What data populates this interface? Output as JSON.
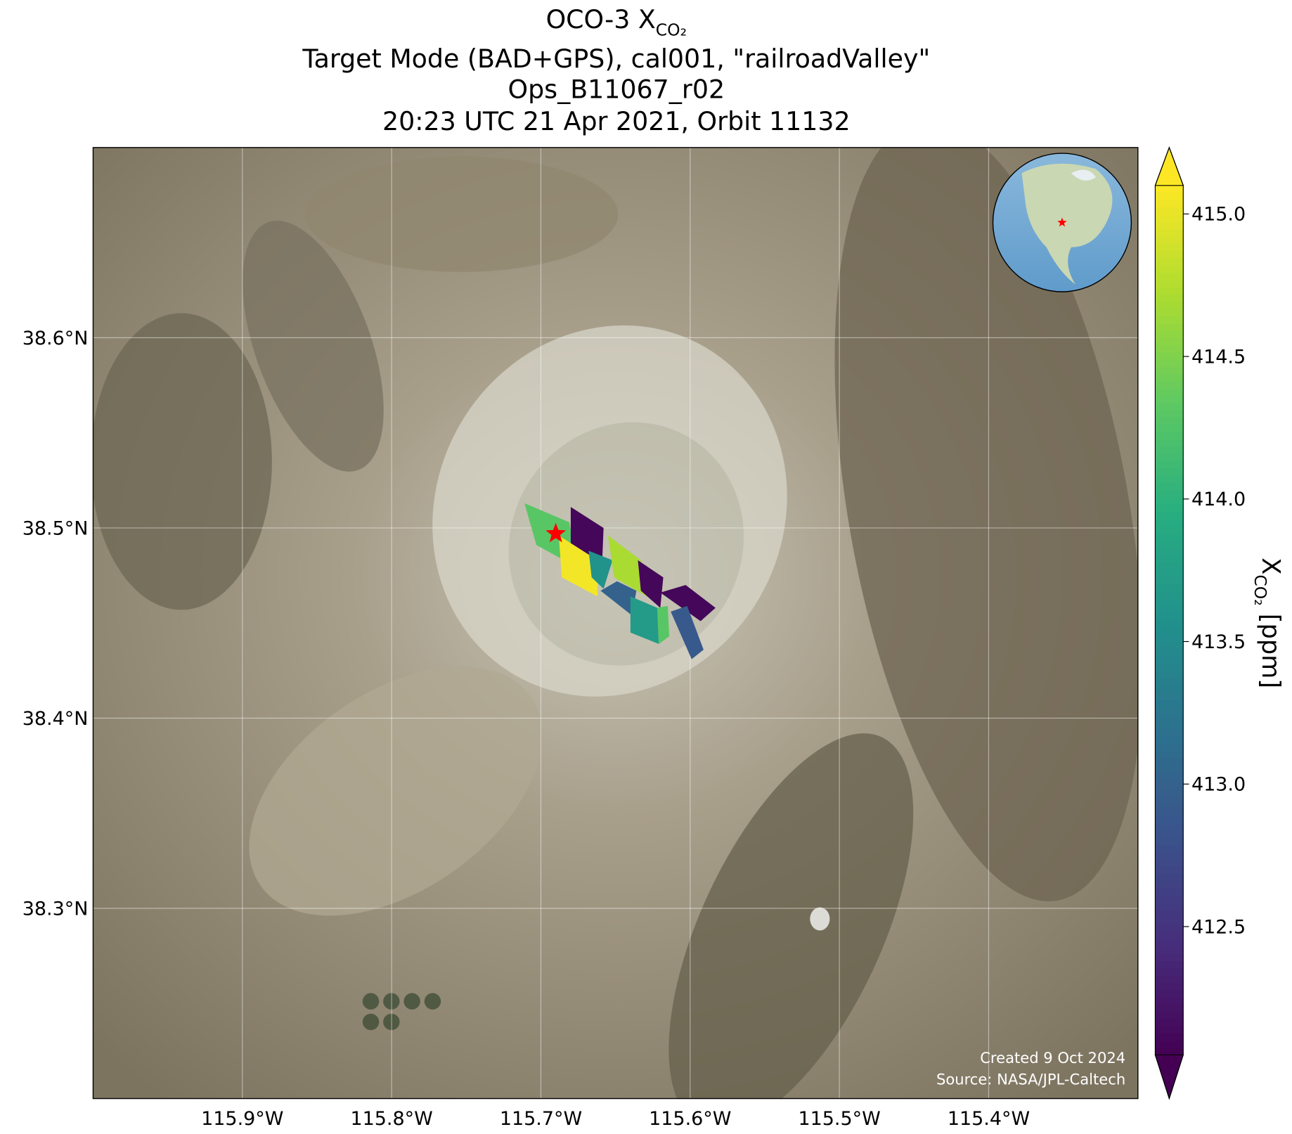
{
  "chart_data": {
    "type": "map",
    "title_lines": [
      {
        "text": "OCO-3 X",
        "subscript": "CO₂"
      },
      "Target Mode (BAD+GPS), cal001, \"railroadValley\"",
      "Ops_B11067_r02",
      "20:23 UTC 21 Apr 2021, Orbit 11132"
    ],
    "xlim": [
      -116.0,
      -115.3
    ],
    "ylim": [
      38.2,
      38.7
    ],
    "xticks": [
      {
        "value": -115.9,
        "label": "115.9°W"
      },
      {
        "value": -115.8,
        "label": "115.8°W"
      },
      {
        "value": -115.7,
        "label": "115.7°W"
      },
      {
        "value": -115.6,
        "label": "115.6°W"
      },
      {
        "value": -115.5,
        "label": "115.5°W"
      },
      {
        "value": -115.4,
        "label": "115.4°W"
      }
    ],
    "yticks": [
      {
        "value": 38.3,
        "label": "38.3°N"
      },
      {
        "value": 38.4,
        "label": "38.4°N"
      },
      {
        "value": 38.5,
        "label": "38.5°N"
      },
      {
        "value": 38.6,
        "label": "38.6°N"
      }
    ],
    "grid": true,
    "colormap": "viridis",
    "clim": [
      412.05,
      415.1
    ],
    "colorbar_ticks": [
      412.5,
      {
        "value": 413.0,
        "label": "413.0"
      },
      413.5,
      {
        "value": 414.0,
        "label": "414.0"
      },
      414.5,
      {
        "value": 415.0,
        "label": "415.0"
      }
    ],
    "colorbar_label": {
      "text": "X",
      "subscript": "CO₂",
      "unit": " [ppm]"
    },
    "target": {
      "lon": -115.69,
      "lat": 38.497,
      "color": "#ff0000"
    },
    "footprints": [
      {
        "lon": [
          -115.711,
          -115.681,
          -115.675,
          -115.703
        ],
        "lat": [
          38.513,
          38.503,
          38.479,
          38.491
        ],
        "value": 414.3
      },
      {
        "lon": [
          -115.68,
          -115.658,
          -115.659,
          -115.68
        ],
        "lat": [
          38.511,
          38.5,
          38.481,
          38.49
        ],
        "value": 412.1
      },
      {
        "lon": [
          -115.688,
          -115.662,
          -115.662,
          -115.686
        ],
        "lat": [
          38.496,
          38.483,
          38.464,
          38.474
        ],
        "value": 415.05
      },
      {
        "lon": [
          -115.668,
          -115.652,
          -115.658,
          -115.666
        ],
        "lat": [
          38.488,
          38.483,
          38.468,
          38.474
        ],
        "value": 413.6
      },
      {
        "lon": [
          -115.655,
          -115.633,
          -115.629,
          -115.651
        ],
        "lat": [
          38.496,
          38.483,
          38.464,
          38.474
        ],
        "value": 414.7
      },
      {
        "lon": [
          -115.635,
          -115.618,
          -115.62,
          -115.633
        ],
        "lat": [
          38.483,
          38.474,
          38.458,
          38.467
        ],
        "value": 412.1
      },
      {
        "lon": [
          -115.66,
          -115.649,
          -115.636,
          -115.639
        ],
        "lat": [
          38.467,
          38.472,
          38.467,
          38.454
        ],
        "value": 413.0
      },
      {
        "lon": [
          -115.64,
          -115.622,
          -115.621,
          -115.64
        ],
        "lat": [
          38.464,
          38.458,
          38.439,
          38.445
        ],
        "value": 413.7
      },
      {
        "lon": [
          -115.622,
          -115.615,
          -115.614,
          -115.621
        ],
        "lat": [
          38.458,
          38.459,
          38.443,
          38.439
        ],
        "value": 414.3
      },
      {
        "lon": [
          -115.62,
          -115.603,
          -115.583,
          -115.593
        ],
        "lat": [
          38.466,
          38.47,
          38.458,
          38.451
        ],
        "value": 412.1
      },
      {
        "lon": [
          -115.613,
          -115.602,
          -115.591,
          -115.599
        ],
        "lat": [
          38.456,
          38.459,
          38.436,
          38.431
        ],
        "value": 412.9
      }
    ],
    "footer": [
      "Created 9 Oct 2024",
      "Source: NASA/JPL-Caltech"
    ]
  }
}
